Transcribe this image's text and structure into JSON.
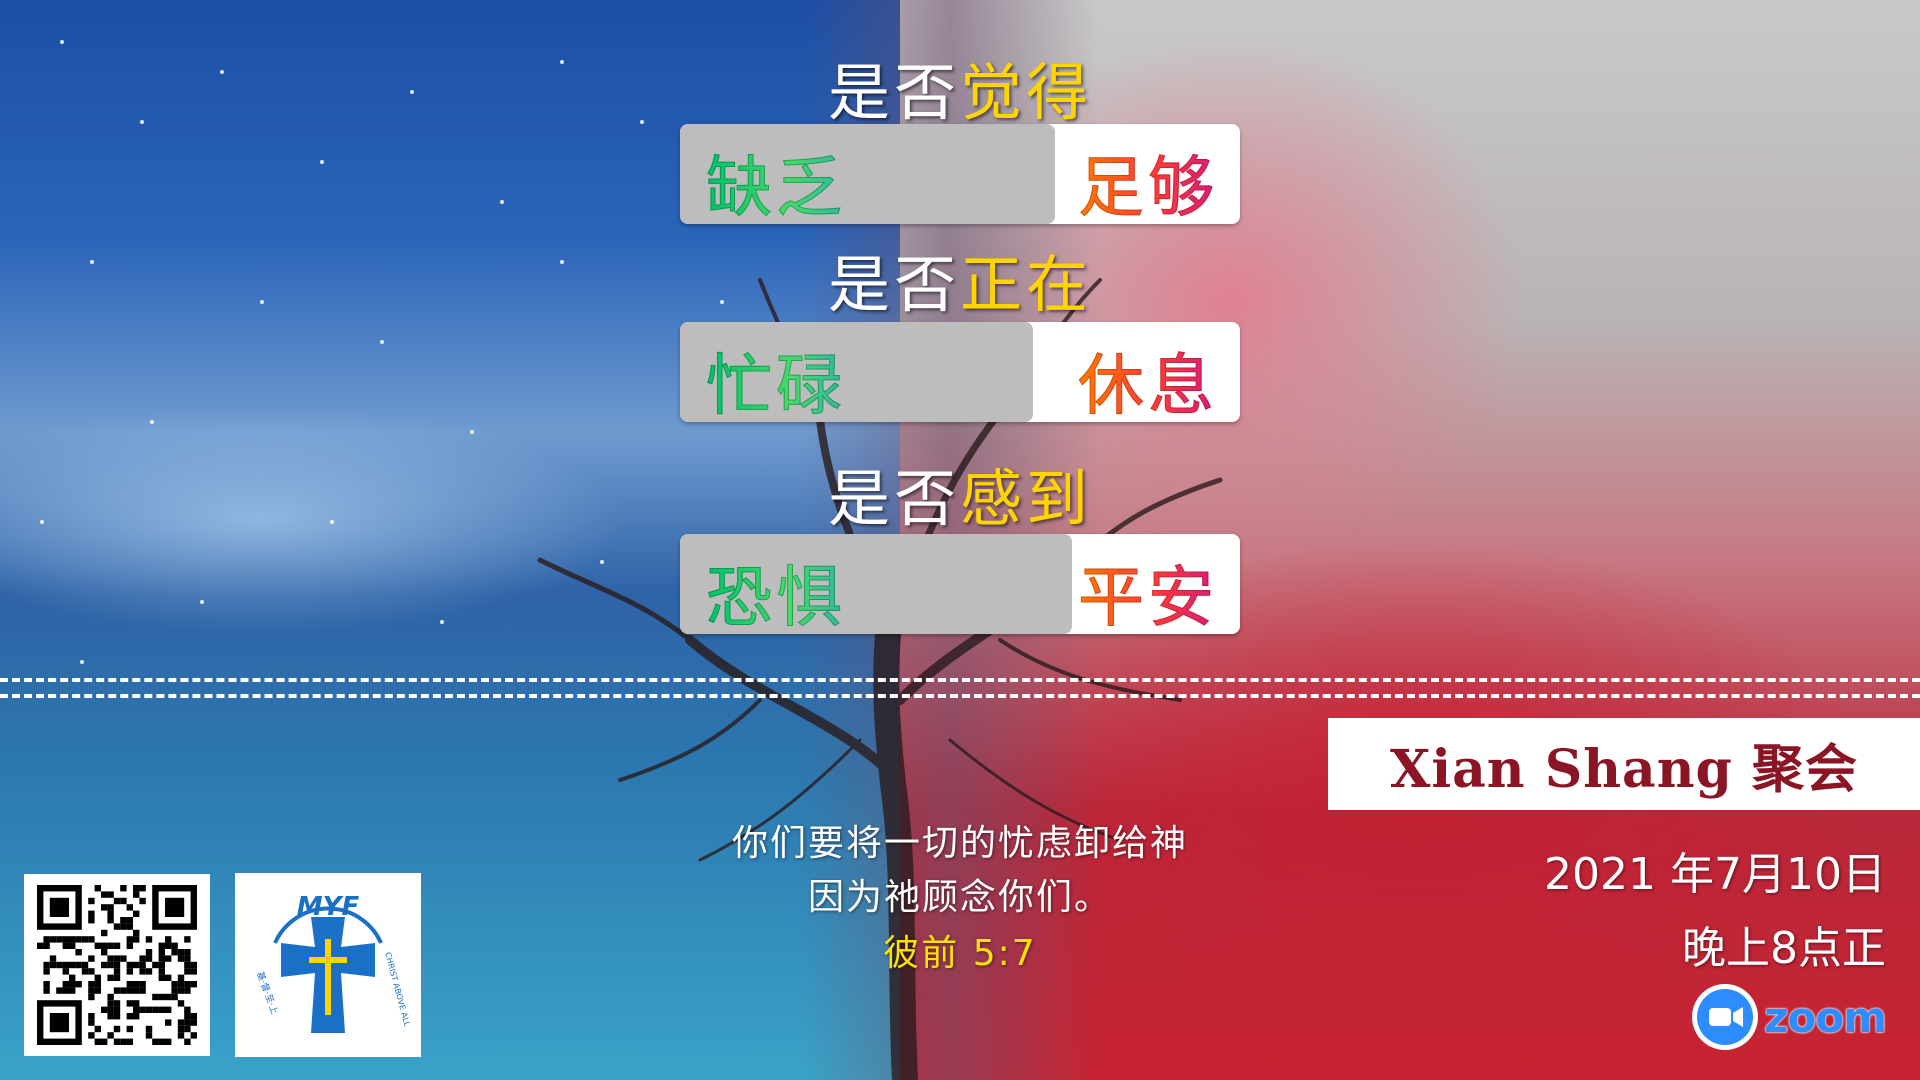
{
  "questions": [
    {
      "prefix": "是否",
      "highlight": "觉得",
      "left_word": "缺乏",
      "right_word": "足够",
      "fill": 0.67
    },
    {
      "prefix": "是否",
      "highlight": "正在",
      "left_word": "忙碌",
      "right_word": "休息",
      "fill": 0.63
    },
    {
      "prefix": "是否",
      "highlight": "感到",
      "left_word": "恐惧",
      "right_word": "平安",
      "fill": 0.7
    }
  ],
  "verse": {
    "line1": "你们要将一切的忧虑卸给神",
    "line2": "因为祂顾念你们。",
    "reference": "彼前 5:7"
  },
  "event": {
    "title": "Xian Shang 聚会",
    "date": "2021 年7月10日",
    "time": "晚上8点正",
    "platform": "zoom"
  },
  "logo": {
    "top_text": "MYF",
    "left_text": "基·督·至·上",
    "right_text": "CHRIST ABOVE ALL"
  },
  "colors": {
    "highlight": "#ffd400",
    "left_word_gradient": [
      "#00c26a",
      "#2fb7a0"
    ],
    "right_word_gradient": [
      "#ff7a00",
      "#d8197a"
    ],
    "event_title": "#8a1525",
    "zoom_blue": "#2d8cff",
    "logo_blue": "#1a6fc7",
    "logo_yellow": "#ffd400"
  },
  "icons": [
    "qr-code-icon",
    "myf-cross-logo",
    "zoom-camera-icon"
  ]
}
